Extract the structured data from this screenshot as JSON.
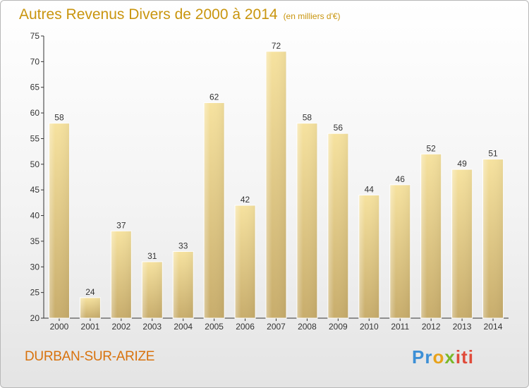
{
  "chart_data": {
    "type": "bar",
    "title": "Autres Revenus Divers de 2000 à 2014",
    "unit_note": "(en milliers d'€)",
    "categories": [
      "2000",
      "2001",
      "2002",
      "2003",
      "2004",
      "2005",
      "2006",
      "2007",
      "2008",
      "2009",
      "2010",
      "2011",
      "2012",
      "2013",
      "2014"
    ],
    "values": [
      58,
      24,
      37,
      31,
      33,
      62,
      42,
      72,
      58,
      56,
      44,
      46,
      52,
      49,
      51
    ],
    "ylim": [
      20,
      75
    ],
    "yticks": [
      20,
      25,
      30,
      35,
      40,
      45,
      50,
      55,
      60,
      65,
      70,
      75
    ],
    "grid": false,
    "data_labels": true,
    "bar_color": "#e8cf87",
    "title_color": "#c9950e"
  },
  "commune": "DURBAN-SUR-ARIZE",
  "logo": {
    "text": "Proxiti",
    "p1": "Pr",
    "p2": "o",
    "p3": "x",
    "p4": "iti"
  }
}
